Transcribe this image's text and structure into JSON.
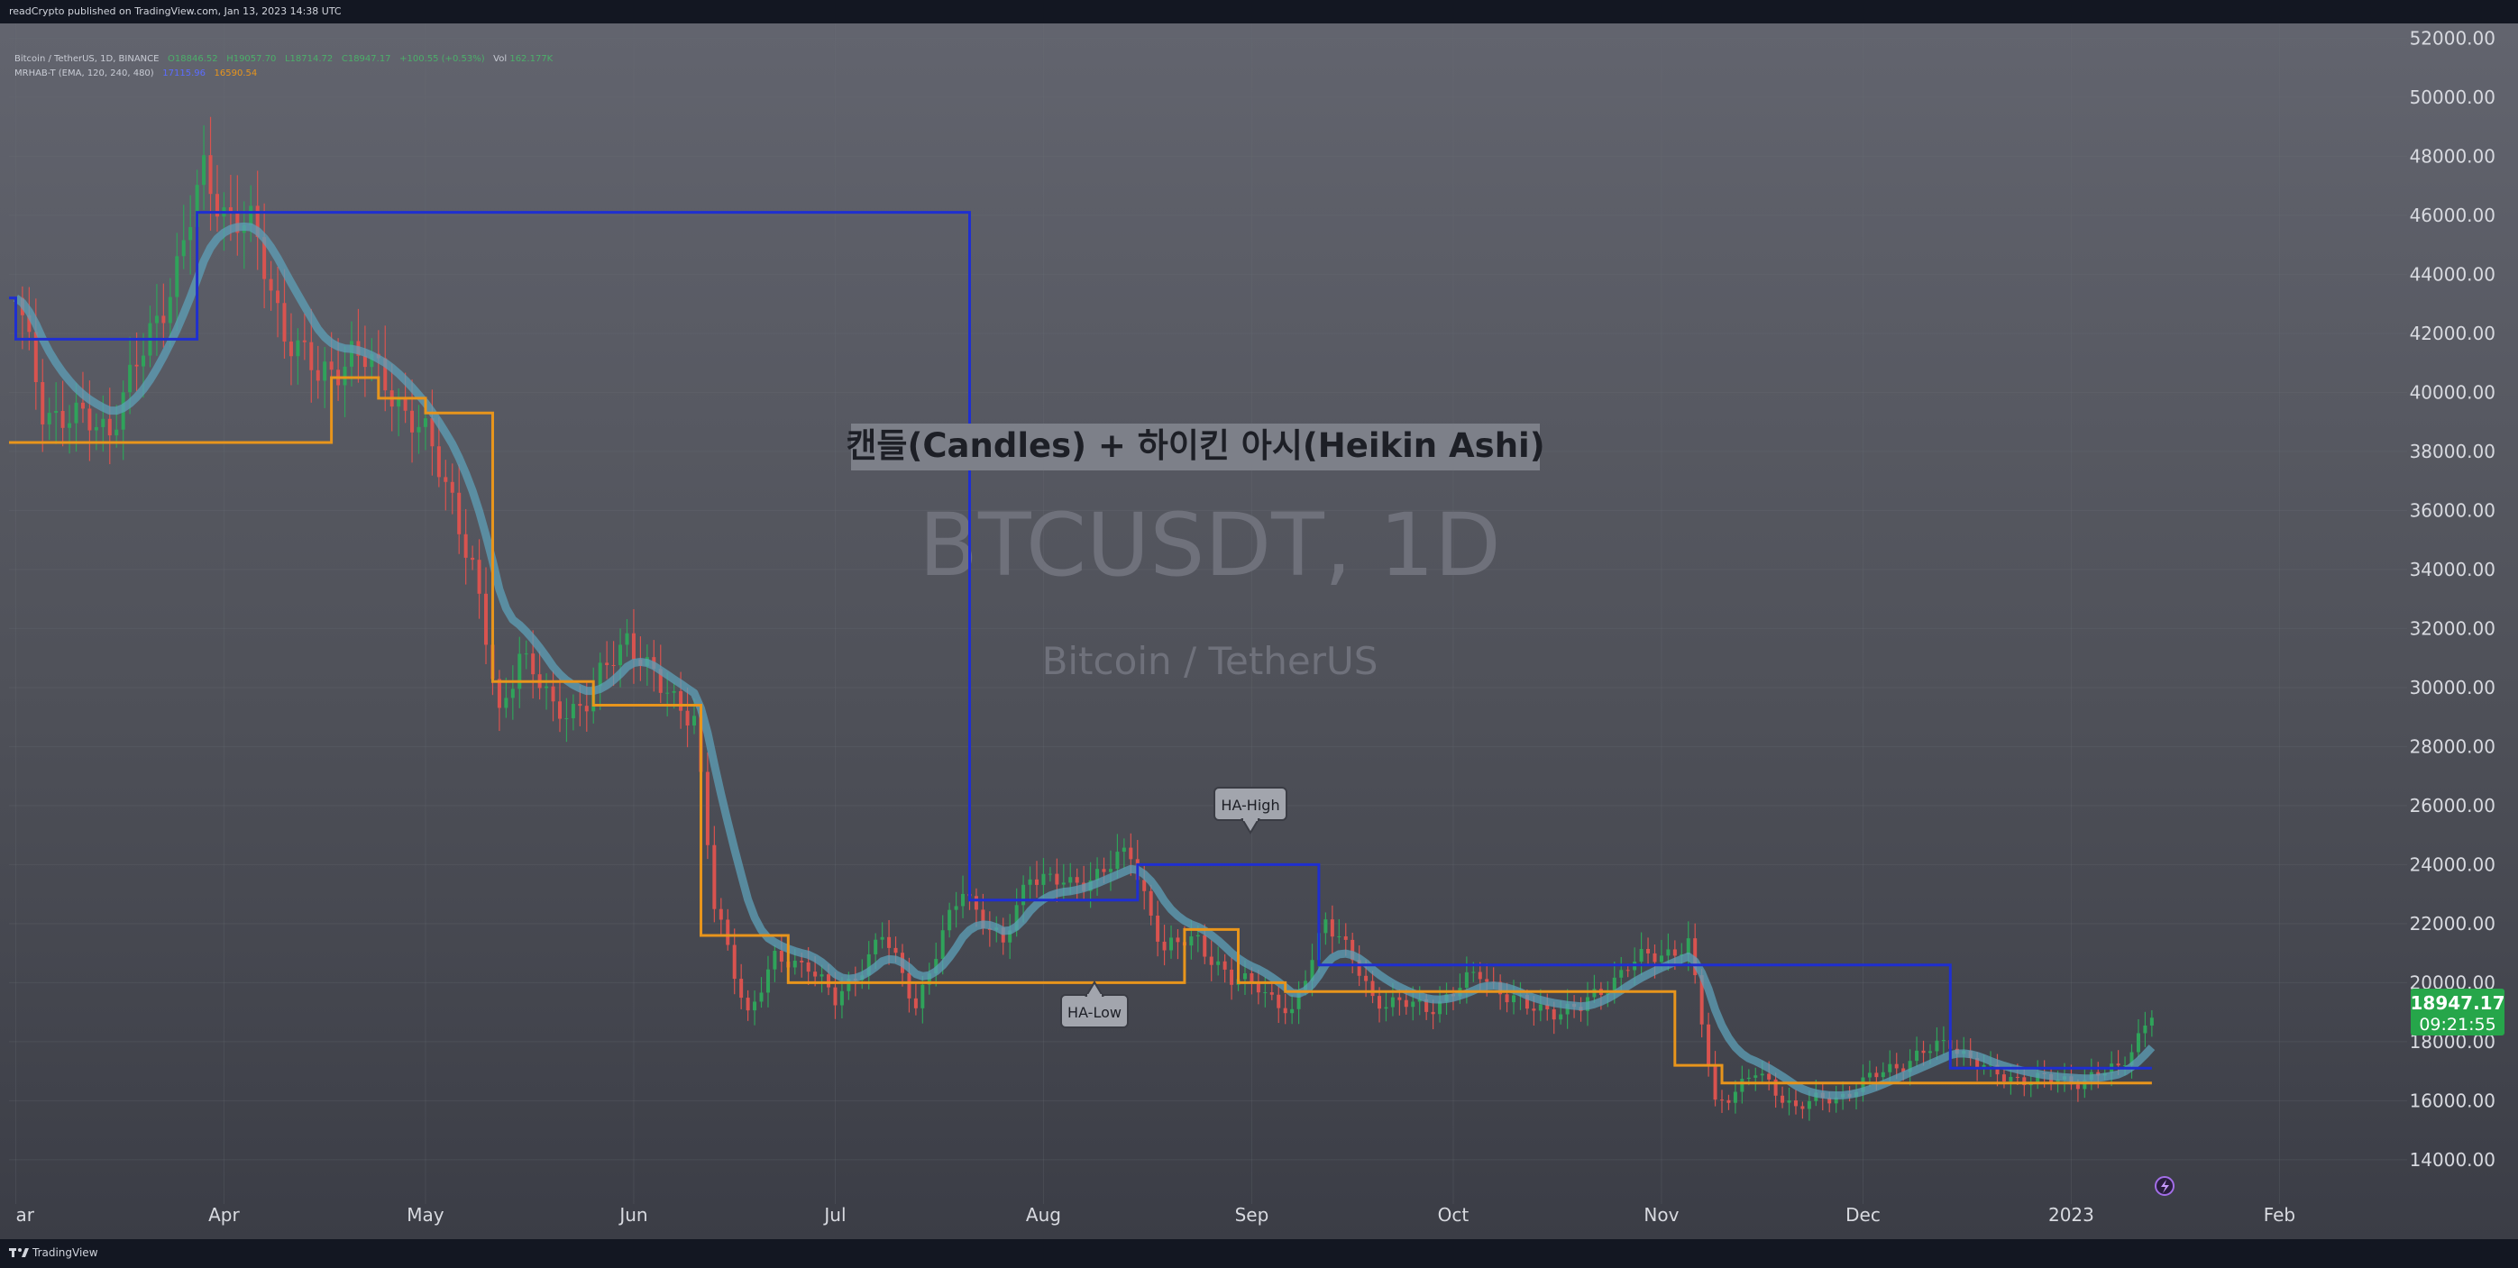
{
  "header": {
    "publish_line": "readCrypto published on TradingView.com, Jan 13, 2023 14:38 UTC"
  },
  "legend": {
    "symbol_line": "Bitcoin / TetherUS, 1D, BINANCE",
    "open": "O18846.52",
    "high": "H19057.70",
    "low": "L18714.72",
    "close": "C18947.17",
    "change": "+100.55 (+0.53%)",
    "vol_label": "Vol",
    "vol": "162.177K",
    "indicator_line": "MRHAB-T (EMA, 120, 240, 480)",
    "indicator_v1": "17115.96",
    "indicator_v2": "16590.54"
  },
  "watermark": {
    "title": "BTCUSDT, 1D",
    "subtitle": "Bitcoin / TetherUS"
  },
  "annotation": {
    "text": "캔들(Candles) + 하이킨 아시(Heikin Ashi)"
  },
  "callouts": {
    "ha_high": "HA-High",
    "ha_low": "HA-Low"
  },
  "price_label": {
    "price": "18947.17",
    "countdown": "09:21:55"
  },
  "footer": {
    "brand": "TradingView"
  },
  "colors": {
    "ha_high_line": "#1f2fd0",
    "ha_low_line": "#e8951c",
    "price_label_bg": "#26a64a",
    "candle_up": "#2fa35a",
    "candle_down": "#d9534f",
    "ema_band": "#5ea0b8"
  },
  "chart_data": {
    "type": "line",
    "title": "BTCUSDT, 1D",
    "subtitle": "Bitcoin / TetherUS",
    "ylim": [
      12500,
      52500
    ],
    "yticks": [
      14000,
      16000,
      18000,
      20000,
      22000,
      24000,
      26000,
      28000,
      30000,
      32000,
      34000,
      36000,
      38000,
      40000,
      42000,
      44000,
      46000,
      48000,
      50000,
      52000
    ],
    "ytick_labels": [
      "14000.00",
      "16000.00",
      "18000.00",
      "20000.00",
      "22000.00",
      "24000.00",
      "26000.00",
      "28000.00",
      "30000.00",
      "32000.00",
      "34000.00",
      "36000.00",
      "38000.00",
      "40000.00",
      "42000.00",
      "44000.00",
      "46000.00",
      "48000.00",
      "50000.00",
      "52000.00"
    ],
    "x_axis": [
      {
        "label": "ar",
        "date": "2022-03-01"
      },
      {
        "label": "Apr",
        "date": "2022-04-01"
      },
      {
        "label": "May",
        "date": "2022-05-01"
      },
      {
        "label": "Jun",
        "date": "2022-06-01"
      },
      {
        "label": "Jul",
        "date": "2022-07-01"
      },
      {
        "label": "Aug",
        "date": "2022-08-01"
      },
      {
        "label": "Sep",
        "date": "2022-09-01"
      },
      {
        "label": "Oct",
        "date": "2022-10-01"
      },
      {
        "label": "Nov",
        "date": "2022-11-01"
      },
      {
        "label": "Dec",
        "date": "2022-12-01"
      },
      {
        "label": "2023",
        "date": "2023-01-01"
      },
      {
        "label": "Feb",
        "date": "2023-02-01"
      }
    ],
    "xlim": [
      "2022-02-28",
      "2023-02-20"
    ],
    "price_series": {
      "name": "BTCUSDT close (approx.)",
      "points": [
        [
          "2022-03-01",
          43200
        ],
        [
          "2022-03-05",
          39500
        ],
        [
          "2022-03-10",
          39000
        ],
        [
          "2022-03-15",
          38900
        ],
        [
          "2022-03-20",
          41300
        ],
        [
          "2022-03-25",
          44300
        ],
        [
          "2022-03-29",
          47300
        ],
        [
          "2022-04-01",
          46300
        ],
        [
          "2022-04-05",
          45500
        ],
        [
          "2022-04-10",
          42200
        ],
        [
          "2022-04-15",
          40400
        ],
        [
          "2022-04-20",
          41400
        ],
        [
          "2022-04-25",
          40400
        ],
        [
          "2022-05-01",
          38400
        ],
        [
          "2022-05-05",
          36500
        ],
        [
          "2022-05-08",
          34000
        ],
        [
          "2022-05-12",
          29000
        ],
        [
          "2022-05-15",
          31300
        ],
        [
          "2022-05-20",
          29200
        ],
        [
          "2022-05-25",
          29500
        ],
        [
          "2022-05-31",
          31800
        ],
        [
          "2022-06-05",
          29900
        ],
        [
          "2022-06-10",
          29100
        ],
        [
          "2022-06-13",
          22500
        ],
        [
          "2022-06-18",
          19000
        ],
        [
          "2022-06-22",
          20700
        ],
        [
          "2022-06-27",
          20700
        ],
        [
          "2022-07-01",
          19300
        ],
        [
          "2022-07-08",
          21600
        ],
        [
          "2022-07-13",
          19300
        ],
        [
          "2022-07-20",
          23200
        ],
        [
          "2022-07-26",
          21200
        ],
        [
          "2022-07-30",
          23800
        ],
        [
          "2022-08-05",
          23200
        ],
        [
          "2022-08-10",
          23900
        ],
        [
          "2022-08-14",
          24300
        ],
        [
          "2022-08-19",
          21100
        ],
        [
          "2022-08-24",
          21500
        ],
        [
          "2022-08-29",
          20000
        ],
        [
          "2022-09-02",
          20000
        ],
        [
          "2022-09-07",
          18800
        ],
        [
          "2022-09-12",
          22300
        ],
        [
          "2022-09-19",
          19500
        ],
        [
          "2022-09-27",
          19100
        ],
        [
          "2022-10-05",
          20300
        ],
        [
          "2022-10-12",
          19100
        ],
        [
          "2022-10-20",
          19100
        ],
        [
          "2022-10-27",
          20600
        ],
        [
          "2022-11-05",
          21300
        ],
        [
          "2022-11-09",
          15900
        ],
        [
          "2022-11-15",
          16900
        ],
        [
          "2022-11-21",
          15800
        ],
        [
          "2022-11-28",
          16200
        ],
        [
          "2022-12-05",
          17100
        ],
        [
          "2022-12-14",
          18000
        ],
        [
          "2022-12-20",
          16900
        ],
        [
          "2022-12-27",
          16700
        ],
        [
          "2023-01-03",
          16700
        ],
        [
          "2023-01-08",
          17100
        ],
        [
          "2023-01-13",
          18947
        ]
      ]
    },
    "ha_high": {
      "name": "HA-High",
      "color": "#1f2fd0",
      "points": [
        [
          "2022-02-28",
          43200
        ],
        [
          "2022-03-01",
          43200
        ],
        [
          "2022-03-01",
          41800
        ],
        [
          "2022-03-28",
          41800
        ],
        [
          "2022-03-28",
          46100
        ],
        [
          "2022-07-21",
          46100
        ],
        [
          "2022-07-21",
          22800
        ],
        [
          "2022-08-15",
          22800
        ],
        [
          "2022-08-15",
          24000
        ],
        [
          "2022-09-11",
          24000
        ],
        [
          "2022-09-11",
          20600
        ],
        [
          "2022-12-14",
          20600
        ],
        [
          "2022-12-14",
          17100
        ],
        [
          "2023-01-13",
          17100
        ]
      ]
    },
    "ha_low": {
      "name": "HA-Low",
      "color": "#e8951c",
      "points": [
        [
          "2022-02-28",
          38300
        ],
        [
          "2022-04-17",
          38300
        ],
        [
          "2022-04-17",
          40500
        ],
        [
          "2022-04-24",
          40500
        ],
        [
          "2022-04-24",
          39800
        ],
        [
          "2022-05-01",
          39800
        ],
        [
          "2022-05-01",
          39300
        ],
        [
          "2022-05-11",
          39300
        ],
        [
          "2022-05-11",
          30200
        ],
        [
          "2022-05-26",
          30200
        ],
        [
          "2022-05-26",
          29400
        ],
        [
          "2022-06-11",
          29400
        ],
        [
          "2022-06-11",
          21600
        ],
        [
          "2022-06-24",
          21600
        ],
        [
          "2022-06-24",
          20000
        ],
        [
          "2022-08-22",
          20000
        ],
        [
          "2022-08-22",
          21800
        ],
        [
          "2022-08-30",
          21800
        ],
        [
          "2022-08-30",
          20000
        ],
        [
          "2022-09-06",
          20000
        ],
        [
          "2022-09-06",
          19700
        ],
        [
          "2022-11-03",
          19700
        ],
        [
          "2022-11-03",
          17200
        ],
        [
          "2022-11-10",
          17200
        ],
        [
          "2022-11-10",
          16600
        ],
        [
          "2023-01-13",
          16600
        ]
      ]
    }
  }
}
